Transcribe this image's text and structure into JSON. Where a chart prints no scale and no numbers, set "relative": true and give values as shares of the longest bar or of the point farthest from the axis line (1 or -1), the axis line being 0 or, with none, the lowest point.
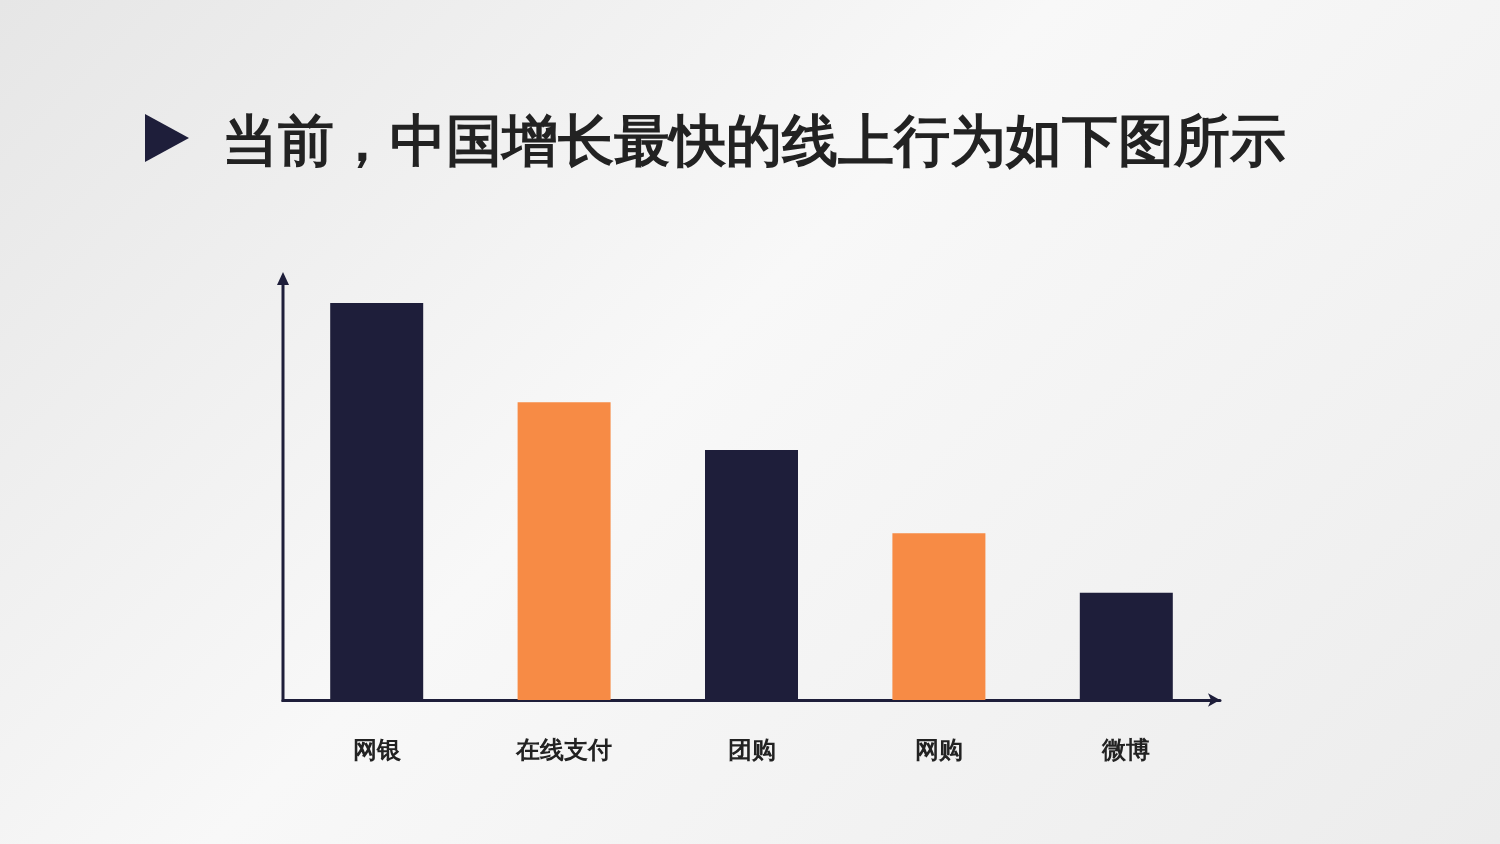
{
  "chart_data": {
    "type": "bar",
    "title": "当前，中国增长最快的线上行为如下图所示",
    "categories": [
      "网银",
      "在线支付",
      "团购",
      "网购",
      "微博"
    ],
    "values": [
      1,
      0.75,
      0.63,
      0.42,
      0.27
    ],
    "colors": [
      "#1e1e3a",
      "#f78b45",
      "#1e1e3a",
      "#f78b45",
      "#1e1e3a"
    ],
    "relative": true
  }
}
